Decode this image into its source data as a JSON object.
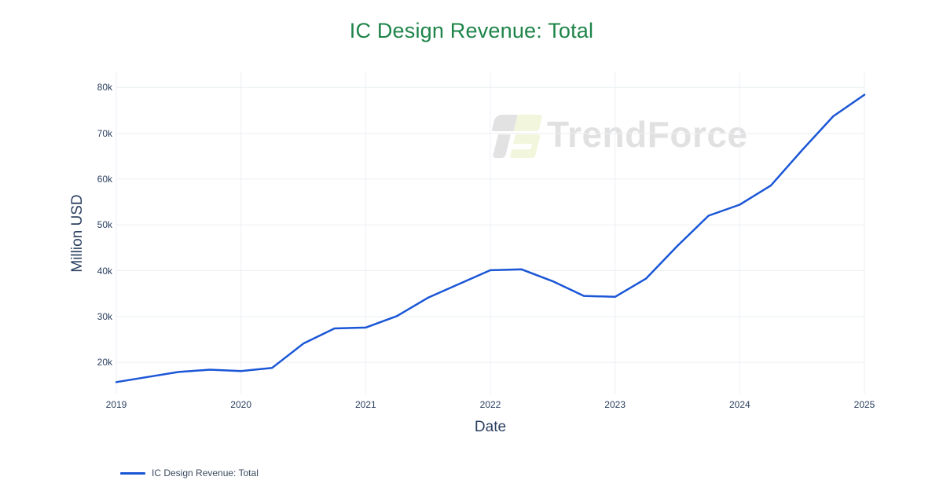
{
  "page": {
    "background": "#ffffff"
  },
  "header": {
    "title": "IC Design Revenue: Total",
    "title_color": "#1e8449"
  },
  "watermark": {
    "text": "TrendForce"
  },
  "legend": {
    "position": "bottom-left",
    "items": [
      {
        "label": "IC Design Revenue: Total",
        "color": "#1a56d6"
      }
    ]
  },
  "chart_data": {
    "type": "line",
    "title": "IC Design Revenue: Total",
    "xlabel": "Date",
    "ylabel": "Million USD",
    "grid": true,
    "legend_position": "bottom-left",
    "x_ticks": [
      "2019",
      "2020",
      "2021",
      "2022",
      "2023",
      "2024",
      "2025"
    ],
    "x_tick_values": [
      2019,
      2020,
      2021,
      2022,
      2023,
      2024,
      2025
    ],
    "y_ticks": [
      "20k",
      "30k",
      "40k",
      "50k",
      "60k",
      "70k",
      "80k"
    ],
    "y_tick_values": [
      20000,
      30000,
      40000,
      50000,
      60000,
      70000,
      80000
    ],
    "x_range": [
      2019,
      2025
    ],
    "y_range": [
      13000,
      83300
    ],
    "grid_color": "#eceff4",
    "series": [
      {
        "name": "IC Design Revenue: Total",
        "color": "#1a56d6",
        "quarters": [
          "2019 Q1",
          "2019 Q2",
          "2019 Q3",
          "2019 Q4",
          "2020 Q1",
          "2020 Q2",
          "2020 Q3",
          "2020 Q4",
          "2021 Q1",
          "2021 Q2",
          "2021 Q3",
          "2021 Q4",
          "2022 Q1",
          "2022 Q2",
          "2022 Q3",
          "2022 Q4",
          "2023 Q1",
          "2023 Q2",
          "2023 Q3",
          "2023 Q4",
          "2024 Q1",
          "2024 Q2",
          "2024 Q3",
          "2024 Q4",
          "2025 Q1"
        ],
        "x": [
          2019.0,
          2019.25,
          2019.5,
          2019.75,
          2020.0,
          2020.25,
          2020.5,
          2020.75,
          2021.0,
          2021.25,
          2021.5,
          2021.75,
          2022.0,
          2022.25,
          2022.5,
          2022.75,
          2023.0,
          2023.25,
          2023.5,
          2023.75,
          2024.0,
          2024.25,
          2024.5,
          2024.75,
          2025.0
        ],
        "values_million_usd": [
          15700,
          16800,
          17900,
          18400,
          18100,
          18800,
          24100,
          27400,
          27600,
          30100,
          34100,
          37100,
          40100,
          40300,
          37700,
          34500,
          34300,
          38300,
          45400,
          52000,
          54400,
          58600,
          66300,
          73700,
          78400
        ]
      }
    ]
  }
}
